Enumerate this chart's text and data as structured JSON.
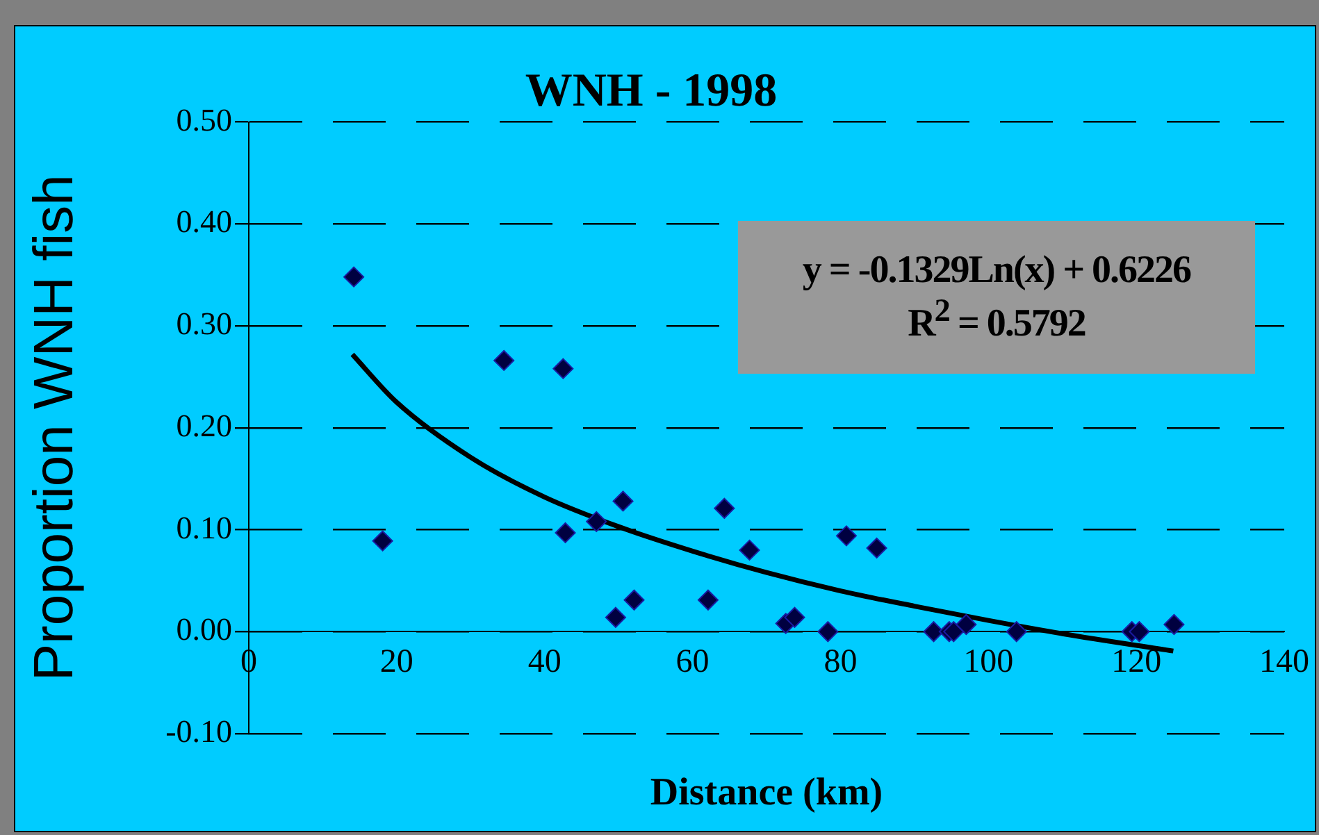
{
  "chart_data": {
    "type": "scatter",
    "title": "WNH - 1998",
    "xlabel": "Distance (km)",
    "ylabel": "Proportion WNH fish",
    "annotations": [
      "y = -0.1329Ln(x) + 0.6226",
      "R$^{2}$ = 0.5792"
    ],
    "xlim": [
      0,
      140
    ],
    "xticks": [
      0,
      20,
      40,
      60,
      80,
      100,
      120,
      140
    ],
    "ylim": [
      -0.1,
      0.5
    ],
    "yticks": [
      {
        "value": -0.1,
        "label": "-0.10"
      },
      {
        "value": 0,
        "label": "0.00"
      },
      {
        "value": 0.1,
        "label": "0.10"
      },
      {
        "value": 0.2,
        "label": "0.20"
      },
      {
        "value": 0.3,
        "label": "0.30"
      },
      {
        "value": 0.4,
        "label": "0.40"
      },
      {
        "value": 0.5,
        "label": "0.50"
      }
    ],
    "grid": "y",
    "legend": false,
    "marker": "diamond",
    "series": [
      {
        "type": "scatter",
        "color": "#000040",
        "x": [
          14.2,
          18.1,
          34.5,
          42.5,
          42.8,
          47.0,
          50.6,
          49.6,
          52.1,
          62.1,
          64.3,
          67.7,
          72.6,
          73.8,
          78.3,
          80.8,
          84.9,
          92.6,
          94.7,
          95.3,
          97.0,
          103.8,
          119.4,
          120.4,
          125.1
        ],
        "values": [
          0.348,
          0.089,
          0.266,
          0.258,
          0.097,
          0.108,
          0.128,
          0.014,
          0.031,
          0.031,
          0.121,
          0.08,
          0.008,
          0.014,
          0.0,
          0.094,
          0.082,
          0.0,
          0.0,
          0.0,
          0.007,
          0.0,
          0.0,
          0.0,
          0.007
        ]
      },
      {
        "type": "line",
        "color": "#000000",
        "marker": "none",
        "line_style": "solid",
        "x": [
          14,
          20,
          30,
          40,
          50,
          60,
          70,
          80,
          90,
          100,
          110,
          125
        ],
        "values": [
          0.272,
          0.225,
          0.171,
          0.132,
          0.103,
          0.079,
          0.058,
          0.04,
          0.025,
          0.011,
          -0.002,
          -0.019
        ]
      }
    ]
  }
}
